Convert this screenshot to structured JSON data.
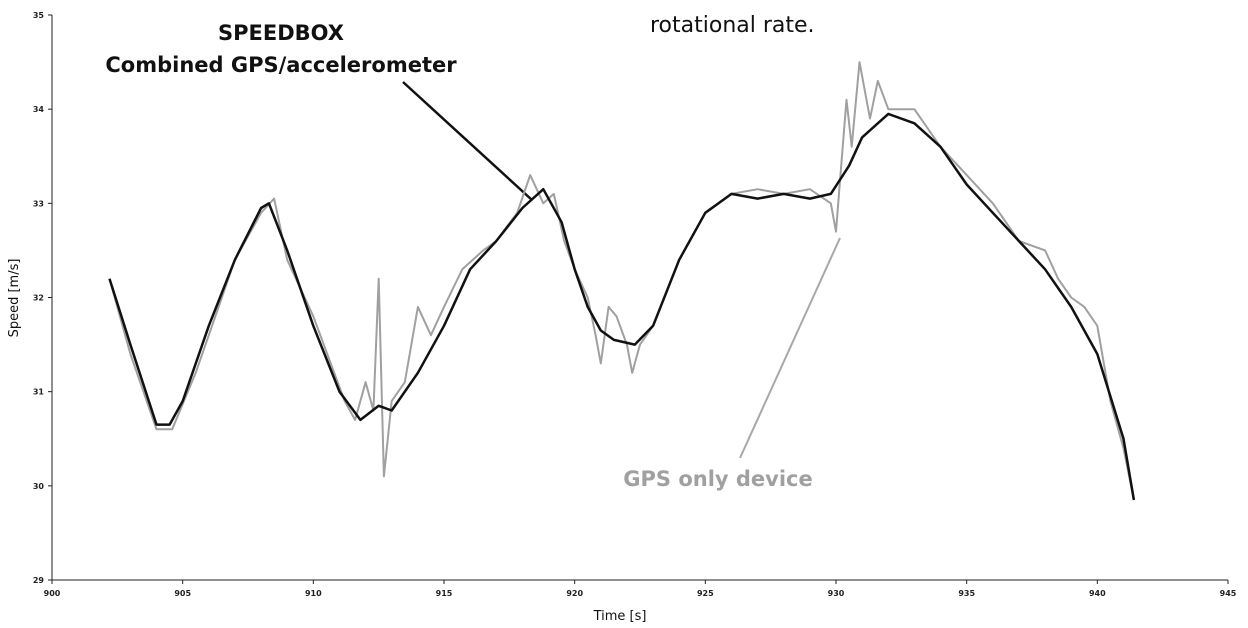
{
  "chart_data": {
    "type": "line",
    "xlabel": "Time [s]",
    "ylabel": "Speed [m/s]",
    "annotations": [
      "SPEEDBOX",
      "Combined GPS/accelerometer",
      "GPS only device",
      "rotational rate."
    ],
    "xlim": [
      900,
      945
    ],
    "xticks": [
      900,
      905,
      910,
      915,
      920,
      925,
      930,
      935,
      940,
      945
    ],
    "ylim": [
      29,
      35
    ],
    "yticks": [
      29,
      30,
      31,
      32,
      33,
      34,
      35
    ],
    "series": [
      {
        "name": "GPS only device",
        "color": "#a0a0a0",
        "x": [
          902.2,
          903,
          904,
          904.6,
          905.5,
          906,
          907,
          908,
          908.5,
          909,
          910,
          910.8,
          911.2,
          911.6,
          912,
          912.3,
          912.5,
          912.7,
          913,
          913.5,
          914,
          914.5,
          915,
          915.7,
          916.5,
          917,
          917.8,
          918.3,
          918.8,
          919.2,
          919.6,
          920,
          920.5,
          920.8,
          921,
          921.3,
          921.6,
          922,
          922.2,
          922.5,
          923,
          924,
          925,
          926,
          927,
          928,
          929,
          929.8,
          930,
          930.2,
          930.4,
          930.6,
          930.9,
          931.3,
          931.6,
          932,
          933,
          934,
          935,
          936,
          937,
          938,
          938.5,
          939,
          939.5,
          940,
          940.5,
          941,
          941.4
        ],
        "values": [
          32.2,
          31.4,
          30.6,
          30.6,
          31.2,
          31.6,
          32.4,
          32.9,
          33.05,
          32.4,
          31.8,
          31.2,
          30.9,
          30.7,
          31.1,
          30.8,
          32.2,
          30.1,
          30.9,
          31.1,
          31.9,
          31.6,
          31.9,
          32.3,
          32.5,
          32.6,
          32.9,
          33.3,
          33.0,
          33.1,
          32.6,
          32.3,
          32.0,
          31.6,
          31.3,
          31.9,
          31.8,
          31.5,
          31.2,
          31.5,
          31.7,
          32.4,
          32.9,
          33.1,
          33.15,
          33.1,
          33.15,
          33.0,
          32.7,
          33.4,
          34.1,
          33.6,
          34.5,
          33.9,
          34.3,
          34.0,
          34.0,
          33.6,
          33.3,
          33.0,
          32.6,
          32.5,
          32.2,
          32.0,
          31.9,
          31.7,
          30.9,
          30.4,
          29.85
        ]
      },
      {
        "name": "SPEEDBOX",
        "color": "#111111",
        "x": [
          902.2,
          903,
          904,
          904.5,
          905,
          906,
          907,
          908,
          908.3,
          909,
          910,
          911,
          911.8,
          912.5,
          913,
          914,
          915,
          916,
          917,
          918,
          918.8,
          919.5,
          920,
          920.5,
          921,
          921.5,
          922.3,
          923,
          924,
          925,
          926,
          927,
          928,
          929,
          929.8,
          930.5,
          931,
          932,
          933,
          934,
          935,
          936,
          937,
          938,
          939,
          940,
          941,
          941.4
        ],
        "values": [
          32.2,
          31.5,
          30.65,
          30.65,
          30.9,
          31.7,
          32.4,
          32.95,
          33.0,
          32.5,
          31.7,
          31.0,
          30.7,
          30.85,
          30.8,
          31.2,
          31.7,
          32.3,
          32.6,
          32.95,
          33.15,
          32.8,
          32.3,
          31.9,
          31.65,
          31.55,
          31.5,
          31.7,
          32.4,
          32.9,
          33.1,
          33.05,
          33.1,
          33.05,
          33.1,
          33.4,
          33.7,
          33.95,
          33.85,
          33.6,
          33.2,
          32.9,
          32.6,
          32.3,
          31.9,
          31.4,
          30.5,
          29.85
        ]
      }
    ]
  }
}
